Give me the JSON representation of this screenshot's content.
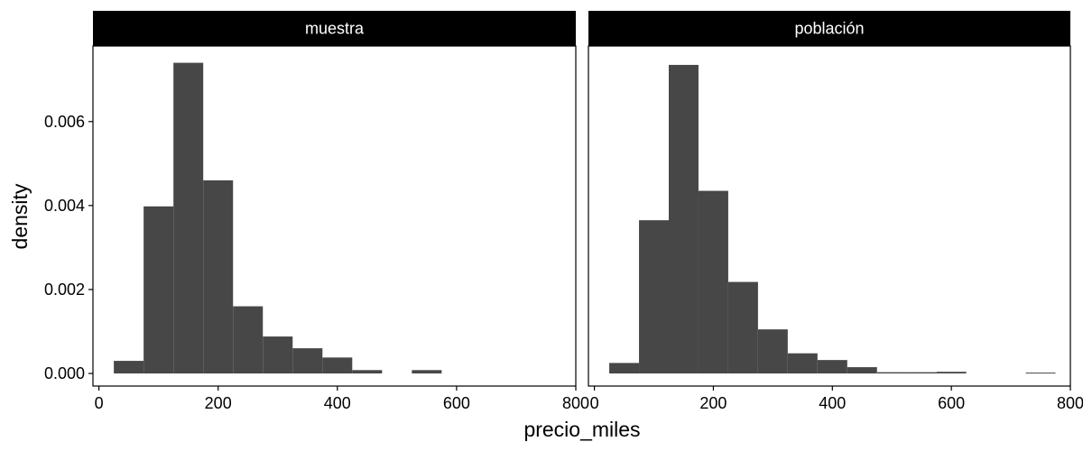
{
  "chart_data": {
    "type": "bar",
    "subtype": "faceted-histogram",
    "xlabel": "precio_miles",
    "ylabel": "density",
    "xlim": [
      -10,
      800
    ],
    "ylim": [
      -0.0003,
      0.0078
    ],
    "x_ticks": [
      0,
      200,
      400,
      600,
      800
    ],
    "y_ticks": [
      0.0,
      0.002,
      0.004,
      0.006
    ],
    "y_tick_labels": [
      "0.000",
      "0.002",
      "0.004",
      "0.006"
    ],
    "bin_width": 50,
    "bar_color": "#474747",
    "facets": [
      {
        "label": "muestra",
        "bins": [
          {
            "x0": 25,
            "x1": 75,
            "value": 0.0003
          },
          {
            "x0": 75,
            "x1": 125,
            "value": 0.00398
          },
          {
            "x0": 125,
            "x1": 175,
            "value": 0.0074
          },
          {
            "x0": 175,
            "x1": 225,
            "value": 0.0046
          },
          {
            "x0": 225,
            "x1": 275,
            "value": 0.0016
          },
          {
            "x0": 275,
            "x1": 325,
            "value": 0.00088
          },
          {
            "x0": 325,
            "x1": 375,
            "value": 0.0006
          },
          {
            "x0": 375,
            "x1": 425,
            "value": 0.00038
          },
          {
            "x0": 425,
            "x1": 475,
            "value": 8e-05
          },
          {
            "x0": 475,
            "x1": 525,
            "value": 0.0
          },
          {
            "x0": 525,
            "x1": 575,
            "value": 8e-05
          }
        ]
      },
      {
        "label": "población",
        "bins": [
          {
            "x0": 25,
            "x1": 75,
            "value": 0.00025
          },
          {
            "x0": 75,
            "x1": 125,
            "value": 0.00365
          },
          {
            "x0": 125,
            "x1": 175,
            "value": 0.00735
          },
          {
            "x0": 175,
            "x1": 225,
            "value": 0.00435
          },
          {
            "x0": 225,
            "x1": 275,
            "value": 0.00218
          },
          {
            "x0": 275,
            "x1": 325,
            "value": 0.00105
          },
          {
            "x0": 325,
            "x1": 375,
            "value": 0.00048
          },
          {
            "x0": 375,
            "x1": 425,
            "value": 0.00032
          },
          {
            "x0": 425,
            "x1": 475,
            "value": 0.00015
          },
          {
            "x0": 475,
            "x1": 525,
            "value": 3e-05
          },
          {
            "x0": 525,
            "x1": 575,
            "value": 3e-05
          },
          {
            "x0": 575,
            "x1": 625,
            "value": 4e-05
          },
          {
            "x0": 625,
            "x1": 675,
            "value": 0.0
          },
          {
            "x0": 675,
            "x1": 725,
            "value": 0.0
          },
          {
            "x0": 725,
            "x1": 775,
            "value": 2e-05
          }
        ]
      }
    ]
  }
}
